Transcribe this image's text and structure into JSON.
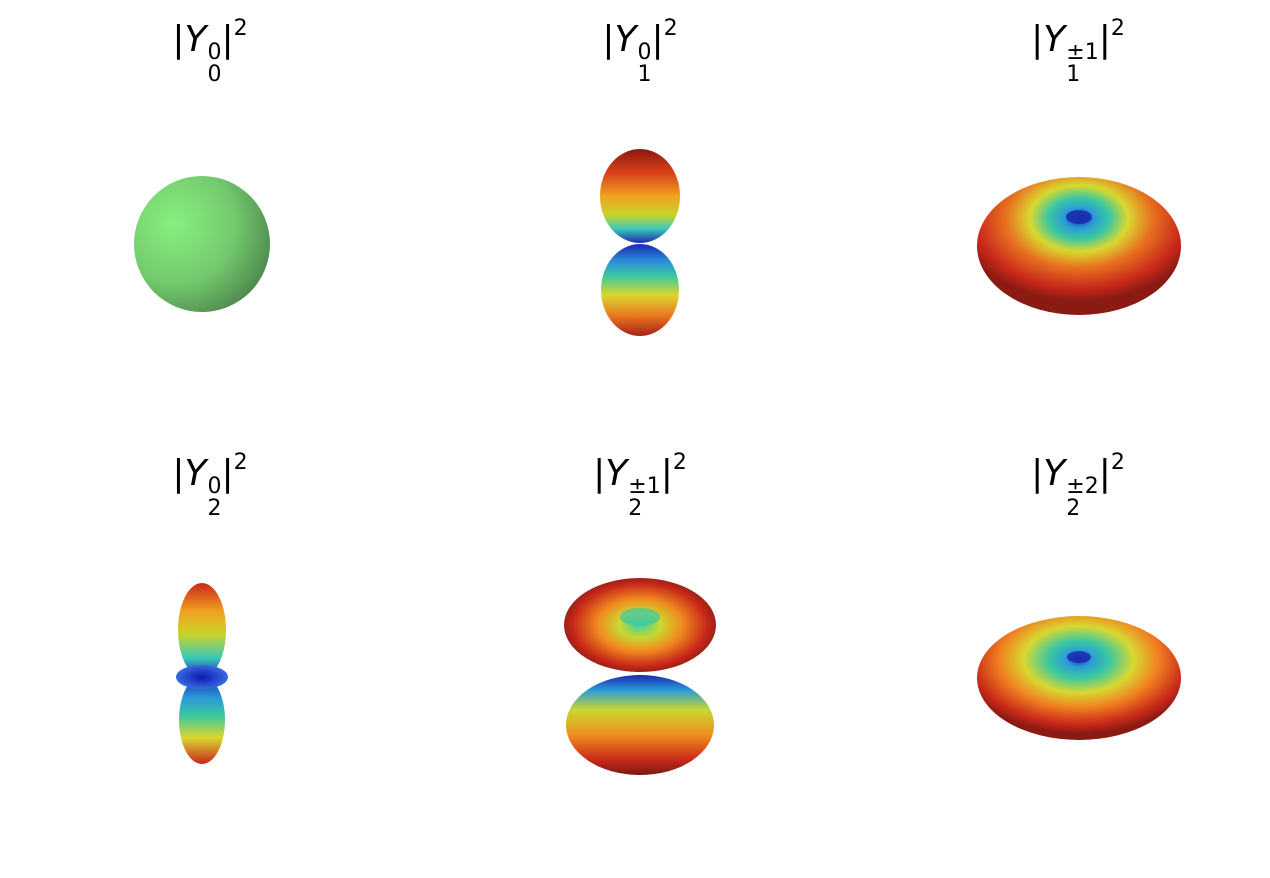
{
  "panels": [
    {
      "symbol": "Y",
      "sub": "0",
      "sup": "0",
      "power": "2"
    },
    {
      "symbol": "Y",
      "sub": "1",
      "sup": "0",
      "power": "2"
    },
    {
      "symbol": "Y",
      "sub": "1",
      "sup": "±1",
      "power": "2"
    },
    {
      "symbol": "Y",
      "sub": "2",
      "sup": "0",
      "power": "2"
    },
    {
      "symbol": "Y",
      "sub": "2",
      "sup": "±1",
      "power": "2"
    },
    {
      "symbol": "Y",
      "sub": "2",
      "sup": "±2",
      "power": "2"
    }
  ],
  "colors": {
    "sphere": "#7fe07f",
    "sphere_shade": "#4e8a4e",
    "red": "#c81e14",
    "orange": "#f08c1e",
    "yellow": "#e6dc28",
    "green": "#5ad250",
    "cyan": "#32c8c8",
    "blue": "#1e3cc8"
  }
}
